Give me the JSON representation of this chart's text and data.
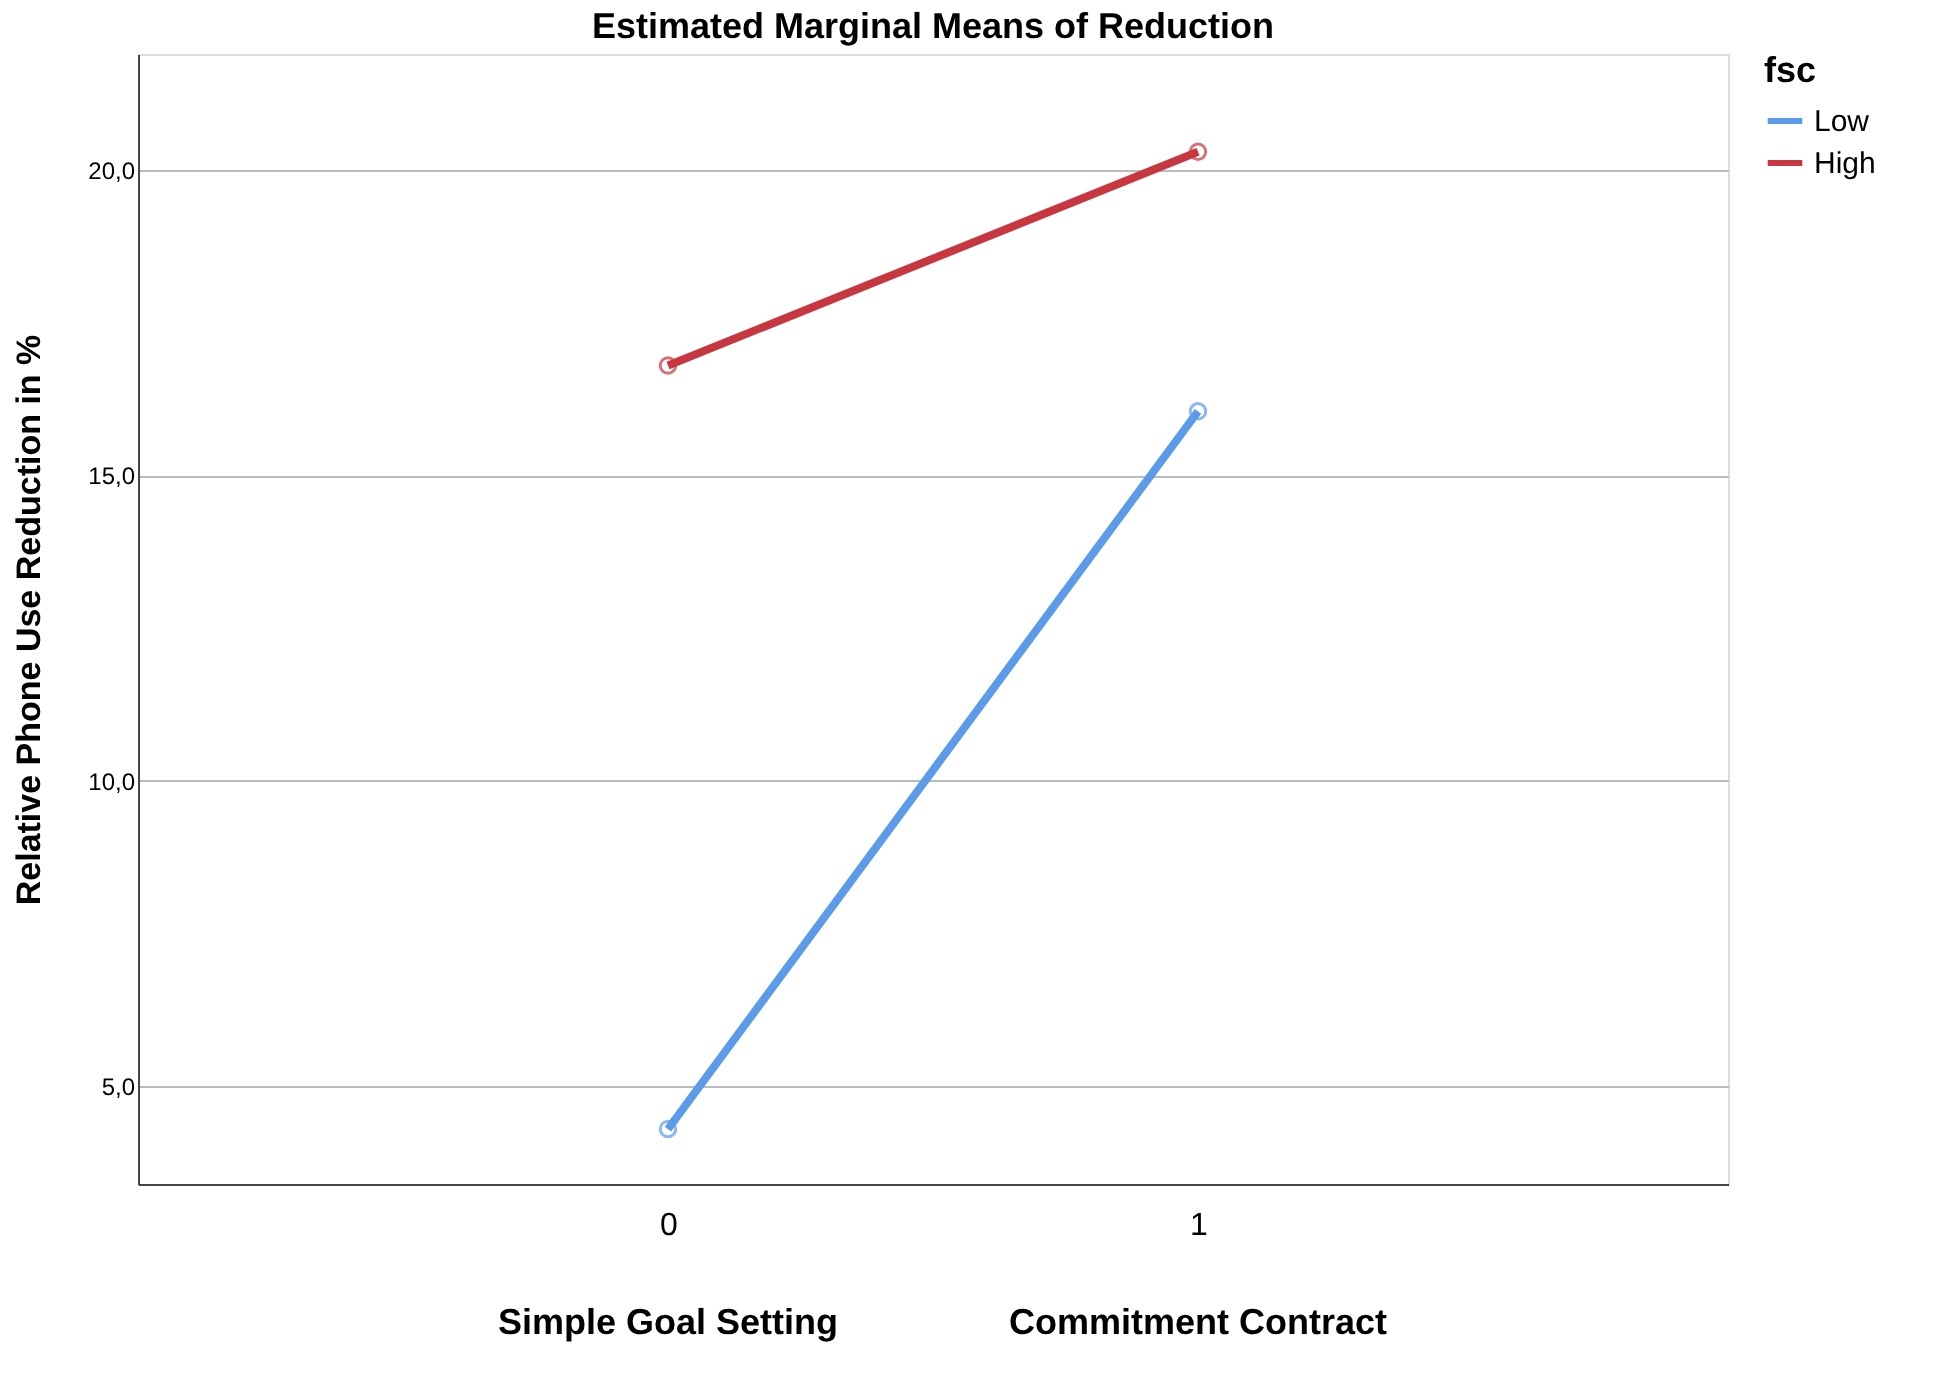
{
  "chart_data": {
    "type": "line",
    "title": "Estimated Marginal Means of Reduction",
    "ylabel": "Relative Phone Use Reduction in %",
    "legend_title": "fsc",
    "categories": [
      "0",
      "1"
    ],
    "annotations": [
      "Simple Goal Setting",
      "Commitment Contract"
    ],
    "series": [
      {
        "name": "Low",
        "color": "#5b9bea",
        "values": [
          4.3,
          16.05
        ]
      },
      {
        "name": "High",
        "color": "#c8363f",
        "values": [
          16.8,
          20.3
        ]
      }
    ],
    "ylim": [
      3.4,
      21.9
    ],
    "yticks": [
      {
        "value": 5,
        "label": "5,0"
      },
      {
        "value": 10,
        "label": "10,0"
      },
      {
        "value": 15,
        "label": "15,0"
      },
      {
        "value": 20,
        "label": "20,0"
      }
    ],
    "grid": "y",
    "legend": "top right",
    "marker": "circle",
    "line_style": "solid"
  }
}
